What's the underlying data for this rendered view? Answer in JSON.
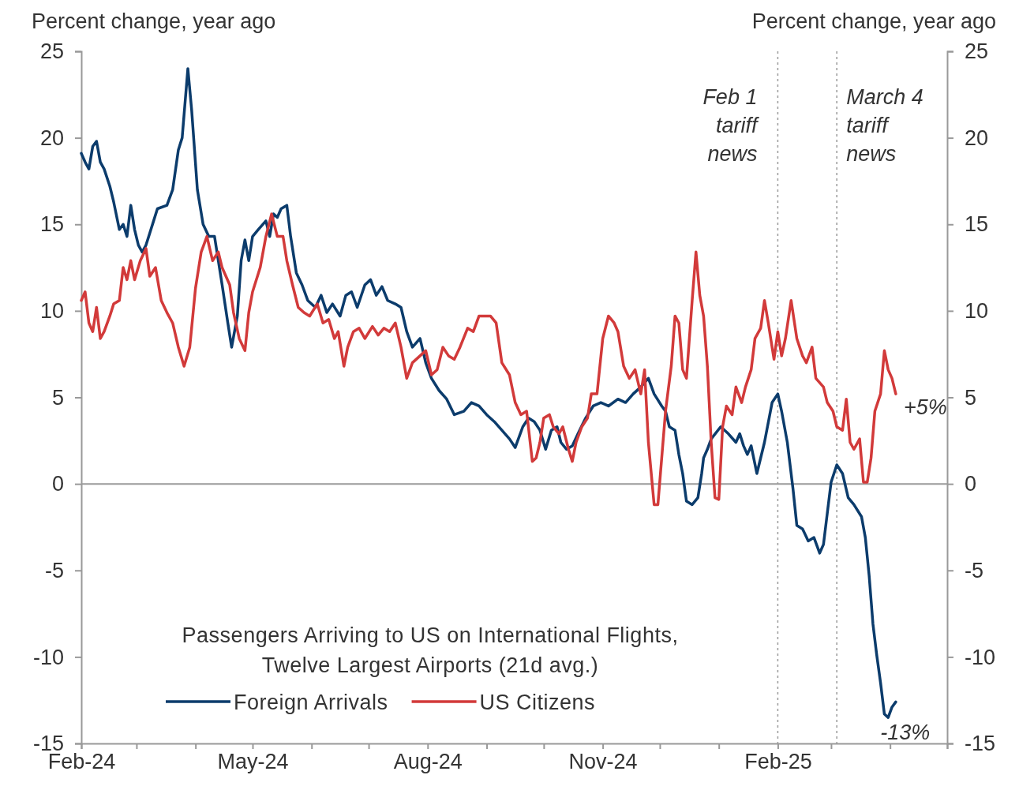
{
  "chart_data": {
    "type": "line",
    "title": "Passengers Arriving to US on International Flights,\nTwelve Largest Airports (21d avg.)",
    "ylabel": "Percent change, year ago",
    "y2label": "Percent change, year ago",
    "xlim": [
      "2024-02-01",
      "2025-05-01"
    ],
    "xticks": [
      {
        "value": "2024-02-01",
        "label": "Feb-24"
      },
      {
        "value": "2024-03-01",
        "label": null
      },
      {
        "value": "2024-04-01",
        "label": null
      },
      {
        "value": "2024-05-01",
        "label": "May-24"
      },
      {
        "value": "2024-06-01",
        "label": null
      },
      {
        "value": "2024-07-01",
        "label": null
      },
      {
        "value": "2024-08-01",
        "label": "Aug-24"
      },
      {
        "value": "2024-09-01",
        "label": null
      },
      {
        "value": "2024-10-01",
        "label": null
      },
      {
        "value": "2024-11-01",
        "label": "Nov-24"
      },
      {
        "value": "2024-12-01",
        "label": null
      },
      {
        "value": "2025-01-01",
        "label": null
      },
      {
        "value": "2025-02-01",
        "label": "Feb-25"
      },
      {
        "value": "2025-03-01",
        "label": null
      },
      {
        "value": "2025-04-01",
        "label": null
      },
      {
        "value": "2025-05-01",
        "label": null
      }
    ],
    "ylim": [
      -15,
      25
    ],
    "yticks": [
      -15,
      -10,
      -5,
      0,
      5,
      10,
      15,
      20,
      25
    ],
    "y2lim": [
      -15,
      25
    ],
    "y2ticks": [
      -15,
      -10,
      -5,
      0,
      5,
      10,
      15,
      20,
      25
    ],
    "grid": false,
    "legend": "bottom left",
    "line_style": "solid",
    "marker": "none",
    "ref_lines": [
      {
        "axis": "y",
        "value": 0,
        "color": "#9a9a9a",
        "line_style": "solid"
      },
      {
        "axis": "x",
        "value": "2025-02-01",
        "label": "Feb 1\ntariff\nnews",
        "color": "#9a9a9a",
        "line_style": "dotted"
      },
      {
        "axis": "x",
        "value": "2025-03-04",
        "label": "March 4\ntariff\nnews",
        "color": "#9a9a9a",
        "line_style": "dotted"
      }
    ],
    "annotations": [
      {
        "text": "+5%",
        "x": "2025-04-04",
        "y": 5.2
      },
      {
        "text": "-13%",
        "x": "2025-03-31",
        "y": -13.5
      }
    ],
    "series": [
      {
        "name": "Foreign Arrivals",
        "color": "#0c3c6c",
        "x": [
          "2024-02-01",
          "2024-02-03",
          "2024-02-05",
          "2024-02-07",
          "2024-02-09",
          "2024-02-11",
          "2024-02-13",
          "2024-02-16",
          "2024-02-18",
          "2024-02-21",
          "2024-02-23",
          "2024-02-25",
          "2024-02-27",
          "2024-02-29",
          "2024-03-02",
          "2024-03-04",
          "2024-03-06",
          "2024-03-08",
          "2024-03-10",
          "2024-03-12",
          "2024-03-17",
          "2024-03-20",
          "2024-03-23",
          "2024-03-25",
          "2024-03-28",
          "2024-03-30",
          "2024-04-02",
          "2024-04-05",
          "2024-04-08",
          "2024-04-11",
          "2024-04-15",
          "2024-04-18",
          "2024-04-20",
          "2024-04-23",
          "2024-04-25",
          "2024-04-27",
          "2024-04-29",
          "2024-05-01",
          "2024-05-04",
          "2024-05-08",
          "2024-05-10",
          "2024-05-12",
          "2024-05-14",
          "2024-05-16",
          "2024-05-19",
          "2024-05-21",
          "2024-05-24",
          "2024-05-27",
          "2024-05-30",
          "2024-06-03",
          "2024-06-06",
          "2024-06-09",
          "2024-06-12",
          "2024-06-16",
          "2024-06-19",
          "2024-06-22",
          "2024-06-25",
          "2024-06-29",
          "2024-07-02",
          "2024-07-05",
          "2024-07-08",
          "2024-07-11",
          "2024-07-15",
          "2024-07-18",
          "2024-07-21",
          "2024-07-24",
          "2024-07-28",
          "2024-07-31",
          "2024-08-03",
          "2024-08-07",
          "2024-08-11",
          "2024-08-15",
          "2024-08-20",
          "2024-08-24",
          "2024-08-28",
          "2024-09-01",
          "2024-09-05",
          "2024-09-09",
          "2024-09-13",
          "2024-09-16",
          "2024-09-20",
          "2024-09-23",
          "2024-09-26",
          "2024-09-29",
          "2024-10-02",
          "2024-10-05",
          "2024-10-08",
          "2024-10-10",
          "2024-10-13",
          "2024-10-16",
          "2024-10-19",
          "2024-10-23",
          "2024-10-27",
          "2024-10-31",
          "2024-11-04",
          "2024-11-09",
          "2024-11-13",
          "2024-11-17",
          "2024-11-21",
          "2024-11-25",
          "2024-11-28",
          "2024-12-02",
          "2024-12-04",
          "2024-12-06",
          "2024-12-09",
          "2024-12-11",
          "2024-12-13",
          "2024-12-15",
          "2024-12-18",
          "2024-12-21",
          "2024-12-23",
          "2024-12-24",
          "2024-12-26",
          "2024-12-28",
          "2025-01-02",
          "2025-01-06",
          "2025-01-10",
          "2025-01-12",
          "2025-01-14",
          "2025-01-16",
          "2025-01-18",
          "2025-01-21",
          "2025-01-25",
          "2025-01-29",
          "2025-02-01",
          "2025-02-03",
          "2025-02-06",
          "2025-02-09",
          "2025-02-11",
          "2025-02-14",
          "2025-02-17",
          "2025-02-20",
          "2025-02-23",
          "2025-02-25",
          "2025-02-27",
          "2025-03-01",
          "2025-03-04",
          "2025-03-07",
          "2025-03-10",
          "2025-03-13",
          "2025-03-17",
          "2025-03-19",
          "2025-03-21",
          "2025-03-23",
          "2025-03-25",
          "2025-03-27",
          "2025-03-29",
          "2025-03-31",
          "2025-04-02",
          "2025-04-04"
        ],
        "values": [
          19.1,
          18.6,
          18.2,
          19.5,
          19.8,
          18.6,
          18.2,
          17.2,
          16.3,
          14.7,
          15.0,
          14.3,
          16.1,
          14.7,
          13.8,
          13.4,
          13.8,
          14.5,
          15.2,
          15.9,
          16.1,
          17.0,
          19.3,
          20.0,
          24.0,
          21.6,
          17.0,
          15.0,
          14.3,
          14.3,
          11.5,
          9.3,
          7.9,
          9.7,
          12.9,
          14.1,
          12.9,
          14.3,
          14.7,
          15.2,
          14.3,
          15.6,
          15.4,
          15.9,
          16.1,
          14.3,
          12.2,
          11.5,
          10.6,
          10.2,
          10.9,
          9.9,
          10.4,
          9.7,
          10.9,
          11.1,
          10.2,
          11.5,
          11.8,
          10.9,
          11.4,
          10.6,
          10.4,
          10.2,
          8.8,
          7.9,
          8.4,
          7.0,
          6.1,
          5.4,
          4.9,
          4.0,
          4.2,
          4.7,
          4.5,
          4.0,
          3.6,
          3.1,
          2.6,
          2.1,
          3.3,
          3.8,
          3.6,
          3.1,
          2.0,
          3.1,
          3.3,
          2.4,
          2.0,
          2.2,
          2.9,
          3.8,
          4.5,
          4.7,
          4.5,
          4.9,
          4.7,
          5.2,
          5.6,
          6.1,
          5.2,
          4.5,
          4.2,
          3.3,
          3.1,
          1.7,
          0.6,
          -1.0,
          -1.2,
          -0.8,
          0.6,
          1.5,
          2.0,
          2.6,
          3.3,
          2.9,
          2.4,
          2.9,
          2.2,
          1.7,
          2.2,
          0.6,
          2.4,
          4.7,
          5.2,
          4.2,
          2.4,
          -0.3,
          -2.4,
          -2.6,
          -3.3,
          -3.1,
          -4.0,
          -3.5,
          -1.7,
          0.1,
          1.1,
          0.6,
          -0.8,
          -1.2,
          -1.9,
          -3.1,
          -5.3,
          -8.1,
          -9.9,
          -11.5,
          -13.3,
          -13.5,
          -12.9,
          -12.6
        ]
      },
      {
        "name": "US Citizens",
        "color": "#d23a3a",
        "x": [
          "2024-02-01",
          "2024-02-03",
          "2024-02-05",
          "2024-02-07",
          "2024-02-09",
          "2024-02-11",
          "2024-02-13",
          "2024-02-16",
          "2024-02-18",
          "2024-02-21",
          "2024-02-23",
          "2024-02-25",
          "2024-02-27",
          "2024-02-29",
          "2024-03-03",
          "2024-03-06",
          "2024-03-08",
          "2024-03-11",
          "2024-03-14",
          "2024-03-17",
          "2024-03-20",
          "2024-03-23",
          "2024-03-26",
          "2024-03-29",
          "2024-04-01",
          "2024-04-04",
          "2024-04-07",
          "2024-04-10",
          "2024-04-13",
          "2024-04-15",
          "2024-04-19",
          "2024-04-21",
          "2024-04-24",
          "2024-04-27",
          "2024-04-29",
          "2024-05-01",
          "2024-05-05",
          "2024-05-08",
          "2024-05-11",
          "2024-05-14",
          "2024-05-17",
          "2024-05-19",
          "2024-05-22",
          "2024-05-25",
          "2024-05-28",
          "2024-05-31",
          "2024-06-04",
          "2024-06-07",
          "2024-06-10",
          "2024-06-13",
          "2024-06-15",
          "2024-06-18",
          "2024-06-20",
          "2024-06-23",
          "2024-06-26",
          "2024-06-29",
          "2024-07-03",
          "2024-07-06",
          "2024-07-09",
          "2024-07-12",
          "2024-07-15",
          "2024-07-18",
          "2024-07-21",
          "2024-07-24",
          "2024-07-28",
          "2024-07-31",
          "2024-08-03",
          "2024-08-06",
          "2024-08-09",
          "2024-08-12",
          "2024-08-15",
          "2024-08-18",
          "2024-08-22",
          "2024-08-25",
          "2024-08-28",
          "2024-08-31",
          "2024-09-03",
          "2024-09-06",
          "2024-09-09",
          "2024-09-13",
          "2024-09-16",
          "2024-09-19",
          "2024-09-22",
          "2024-09-25",
          "2024-09-27",
          "2024-09-29",
          "2024-10-01",
          "2024-10-04",
          "2024-10-06",
          "2024-10-09",
          "2024-10-11",
          "2024-10-14",
          "2024-10-16",
          "2024-10-18",
          "2024-10-21",
          "2024-10-24",
          "2024-10-26",
          "2024-10-29",
          "2024-11-01",
          "2024-11-04",
          "2024-11-07",
          "2024-11-09",
          "2024-11-12",
          "2024-11-15",
          "2024-11-18",
          "2024-11-21",
          "2024-11-23",
          "2024-11-25",
          "2024-11-28",
          "2024-11-30",
          "2024-12-02",
          "2024-12-04",
          "2024-12-07",
          "2024-12-09",
          "2024-12-11",
          "2024-12-13",
          "2024-12-15",
          "2024-12-18",
          "2024-12-20",
          "2024-12-22",
          "2024-12-24",
          "2024-12-26",
          "2024-12-28",
          "2024-12-30",
          "2025-01-01",
          "2025-01-03",
          "2025-01-05",
          "2025-01-08",
          "2025-01-10",
          "2025-01-13",
          "2025-01-15",
          "2025-01-18",
          "2025-01-20",
          "2025-01-23",
          "2025-01-25",
          "2025-01-27",
          "2025-01-30",
          "2025-02-01",
          "2025-02-03",
          "2025-02-05",
          "2025-02-08",
          "2025-02-11",
          "2025-02-14",
          "2025-02-16",
          "2025-02-19",
          "2025-02-21",
          "2025-02-25",
          "2025-02-27",
          "2025-03-02",
          "2025-03-04",
          "2025-03-07",
          "2025-03-09",
          "2025-03-11",
          "2025-03-13",
          "2025-03-16",
          "2025-03-18",
          "2025-03-20",
          "2025-03-22",
          "2025-03-24",
          "2025-03-27",
          "2025-03-29",
          "2025-03-31",
          "2025-04-02",
          "2025-04-04"
        ],
        "values": [
          10.6,
          11.1,
          9.3,
          8.8,
          10.2,
          8.4,
          8.8,
          9.7,
          10.4,
          10.6,
          12.5,
          11.8,
          12.9,
          11.8,
          12.9,
          13.6,
          12.0,
          12.5,
          10.6,
          9.9,
          9.3,
          7.9,
          6.8,
          7.9,
          11.3,
          13.4,
          14.3,
          12.9,
          13.4,
          12.5,
          11.5,
          9.9,
          8.4,
          7.7,
          9.9,
          11.1,
          12.5,
          14.3,
          15.6,
          14.3,
          14.3,
          12.9,
          11.5,
          10.2,
          9.9,
          9.7,
          10.4,
          9.3,
          9.5,
          8.4,
          8.8,
          6.8,
          7.9,
          8.8,
          9.0,
          8.4,
          9.1,
          8.6,
          9.0,
          8.8,
          9.3,
          7.9,
          6.1,
          7.0,
          7.4,
          7.7,
          6.3,
          6.6,
          7.9,
          7.4,
          7.2,
          7.9,
          9.0,
          8.8,
          9.7,
          9.7,
          9.7,
          9.3,
          7.0,
          6.3,
          4.7,
          4.0,
          4.2,
          1.3,
          1.5,
          2.4,
          3.8,
          4.0,
          3.3,
          2.9,
          3.3,
          2.0,
          1.3,
          2.4,
          3.3,
          3.8,
          5.2,
          5.2,
          8.4,
          9.7,
          9.3,
          8.8,
          6.8,
          6.1,
          6.6,
          5.2,
          6.6,
          2.4,
          -1.2,
          -1.2,
          1.5,
          4.2,
          6.8,
          9.7,
          9.3,
          6.6,
          6.1,
          10.6,
          13.4,
          10.9,
          9.7,
          6.8,
          2.4,
          -0.8,
          -0.9,
          3.3,
          4.5,
          4.0,
          5.6,
          4.7,
          5.6,
          6.6,
          8.4,
          9.0,
          10.6,
          9.3,
          7.2,
          8.8,
          7.4,
          8.4,
          10.6,
          8.4,
          7.4,
          7.0,
          7.9,
          6.1,
          5.6,
          4.7,
          4.2,
          3.3,
          3.1,
          4.9,
          2.4,
          2.0,
          2.6,
          0.1,
          0.1,
          1.5,
          4.2,
          5.2,
          7.7,
          6.6,
          6.1,
          5.2
        ]
      }
    ]
  }
}
